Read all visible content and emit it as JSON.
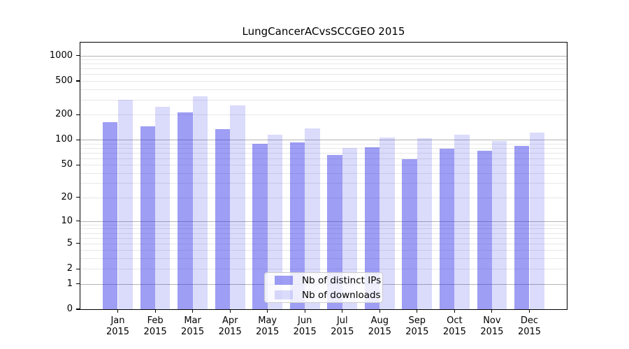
{
  "title": "LungCancerACvsSCCGEO 2015",
  "chart_data": {
    "type": "bar",
    "title": "LungCancerACvsSCCGEO 2015",
    "categories": [
      "Jan",
      "Feb",
      "Mar",
      "Apr",
      "May",
      "Jun",
      "Jul",
      "Aug",
      "Sep",
      "Oct",
      "Nov",
      "Dec"
    ],
    "x_year_label": "2015",
    "series": [
      {
        "name": "Nb of distinct IPs",
        "color": "rgba(40,40,230,0.45)",
        "values": [
          163,
          145,
          214,
          134,
          90,
          94,
          66,
          82,
          59,
          78,
          74,
          85
        ]
      },
      {
        "name": "Nb of downloads",
        "color": "rgba(40,40,230,0.17)",
        "values": [
          301,
          246,
          327,
          257,
          115,
          136,
          80,
          107,
          105,
          116,
          97,
          123
        ]
      }
    ],
    "xlabel": "",
    "ylabel": "",
    "y_axis": {
      "scale": "log1p",
      "tick_labels": [
        0,
        1,
        2,
        5,
        10,
        20,
        50,
        100,
        200,
        500,
        1000
      ],
      "major_gridlines": [
        1,
        10,
        100,
        1000
      ],
      "minor_gridlines": [
        2,
        3,
        4,
        5,
        6,
        7,
        8,
        9,
        20,
        30,
        40,
        50,
        60,
        70,
        80,
        90,
        200,
        300,
        400,
        500,
        600,
        700,
        800,
        900
      ],
      "ylim": [
        0,
        1425
      ]
    },
    "legend_position": "lower center",
    "grid": true,
    "colors": {
      "bar_distinct_ips": "rgba(40,40,230,0.45)",
      "bar_downloads": "rgba(40,40,230,0.17)",
      "gridline_major": "#b3b3b3",
      "gridline_minor": "#e7e7e7",
      "axis_frame": "#000000",
      "text": "#000000"
    }
  }
}
